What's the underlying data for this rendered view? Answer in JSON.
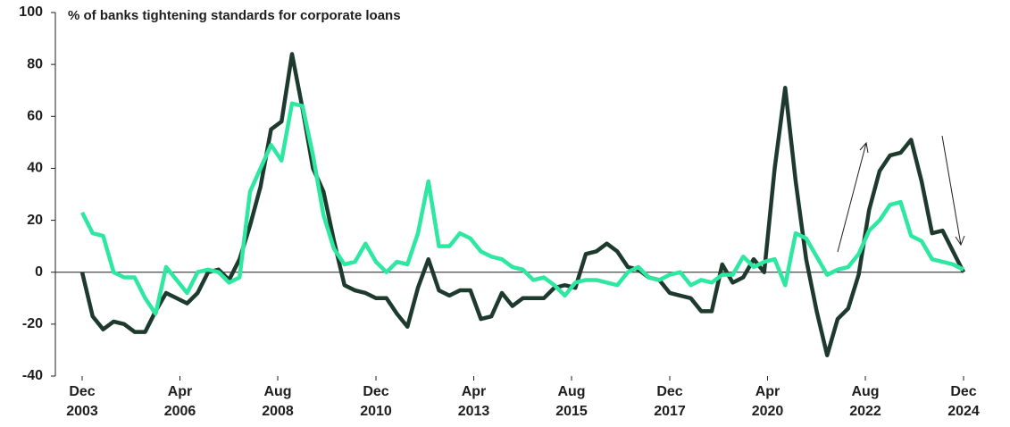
{
  "chart_data": {
    "type": "line",
    "title": "% of banks tightening standards for corporate loans",
    "x": [
      2003.92,
      2004.17,
      2004.42,
      2004.67,
      2004.92,
      2005.17,
      2005.42,
      2005.67,
      2005.92,
      2006.17,
      2006.42,
      2006.67,
      2006.92,
      2007.17,
      2007.42,
      2007.67,
      2007.92,
      2008.17,
      2008.42,
      2008.67,
      2008.92,
      2009.17,
      2009.42,
      2009.67,
      2009.92,
      2010.17,
      2010.42,
      2010.67,
      2010.92,
      2011.17,
      2011.42,
      2011.67,
      2011.92,
      2012.17,
      2012.42,
      2012.67,
      2012.92,
      2013.17,
      2013.42,
      2013.67,
      2013.92,
      2014.17,
      2014.42,
      2014.67,
      2014.92,
      2015.17,
      2015.42,
      2015.67,
      2015.92,
      2016.17,
      2016.42,
      2016.67,
      2016.92,
      2017.17,
      2017.42,
      2017.67,
      2017.92,
      2018.17,
      2018.42,
      2018.67,
      2018.92,
      2019.17,
      2019.42,
      2019.67,
      2019.92,
      2020.17,
      2020.42,
      2020.67,
      2020.92,
      2021.17,
      2021.42,
      2021.67,
      2021.92,
      2022.17,
      2022.42,
      2022.67,
      2022.92,
      2023.17,
      2023.42,
      2023.67,
      2023.92,
      2024.17,
      2024.42,
      2024.67,
      2024.92
    ],
    "series": [
      {
        "color": "#1e3a2f",
        "values": [
          0,
          -17,
          -22,
          -19,
          -20,
          -23,
          -23,
          -15,
          -8,
          -10,
          -12,
          -8,
          0,
          1,
          -3,
          5,
          18,
          33,
          55,
          58,
          84,
          63,
          40,
          31,
          12,
          -5,
          -7,
          -8,
          -10,
          -10,
          -16,
          -21,
          -6,
          5,
          -7,
          -9,
          -7,
          -7,
          -18,
          -17,
          -8,
          -13,
          -10,
          -10,
          -10,
          -6,
          -5,
          -6,
          7,
          8,
          11,
          8,
          2,
          1,
          -2,
          -3,
          -8,
          -9,
          -10,
          -15,
          -15,
          3,
          -4,
          -2,
          5,
          0,
          40,
          71,
          35,
          5,
          -15,
          -32,
          -18,
          -14,
          -1,
          24,
          39,
          45,
          46,
          51,
          35,
          15,
          16,
          8,
          0
        ]
      },
      {
        "color": "#2ee8a2",
        "values": [
          23,
          15,
          14,
          0,
          -2,
          -2,
          -10,
          -16,
          2,
          -3,
          -8,
          0,
          1,
          0,
          -4,
          -2,
          31,
          40,
          49,
          43,
          65,
          64,
          45,
          22,
          9,
          3,
          4,
          11,
          4,
          0,
          4,
          3,
          15,
          35,
          10,
          10,
          15,
          13,
          8,
          6,
          5,
          2,
          1,
          -3,
          -2,
          -5,
          -9,
          -4,
          -3,
          -3,
          -4,
          -5,
          0,
          2,
          -2,
          -3,
          -1,
          0,
          -5,
          -3,
          -4,
          -1,
          -1,
          6,
          2,
          4,
          5,
          -5,
          15,
          13,
          6,
          -1,
          1,
          2,
          7,
          16,
          20,
          26,
          27,
          14,
          12,
          5,
          4,
          3,
          1
        ]
      }
    ],
    "xlim": [
      2003.92,
      2024.92
    ],
    "xticks": [
      {
        "value": 2003.92,
        "label": "Dec 2003"
      },
      {
        "value": 2006.25,
        "label": "Apr 2006"
      },
      {
        "value": 2008.58,
        "label": "Aug 2008"
      },
      {
        "value": 2010.92,
        "label": "Dec 2010"
      },
      {
        "value": 2013.25,
        "label": "Apr 2013"
      },
      {
        "value": 2015.58,
        "label": "Aug 2015"
      },
      {
        "value": 2017.92,
        "label": "Dec 2017"
      },
      {
        "value": 2020.25,
        "label": "Apr 2020"
      },
      {
        "value": 2022.58,
        "label": "Aug 2022"
      },
      {
        "value": 2024.92,
        "label": "Dec 2024"
      }
    ],
    "ylim": [
      -40,
      100
    ],
    "yticks": [
      -40,
      -20,
      0,
      20,
      40,
      60,
      80,
      100
    ]
  }
}
